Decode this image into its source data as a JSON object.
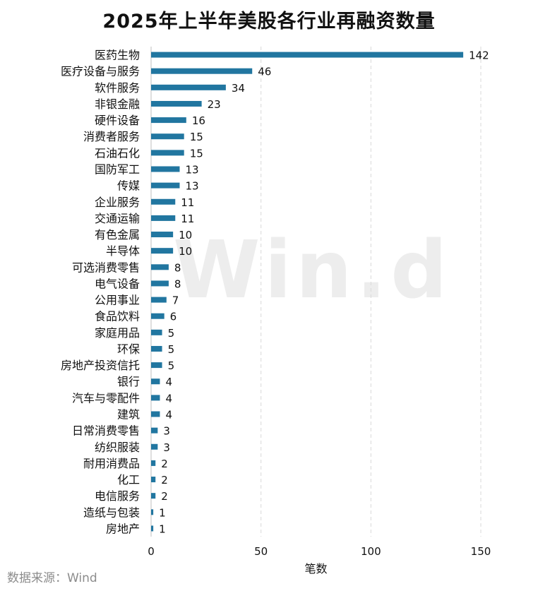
{
  "watermark": "Win.d",
  "source": "数据来源：Wind",
  "chart_data": {
    "type": "bar",
    "orientation": "horizontal",
    "title": "2025年上半年美股各行业再融资数量",
    "xlabel": "笔数",
    "ylabel": "",
    "xlim": [
      0,
      150
    ],
    "xticks": [
      0,
      50,
      100,
      150
    ],
    "grid": "vertical-dashed",
    "bar_color": "#2176a0",
    "categories": [
      "医药生物",
      "医疗设备与服务",
      "软件服务",
      "非银金融",
      "硬件设备",
      "消费者服务",
      "石油石化",
      "国防军工",
      "传媒",
      "企业服务",
      "交通运输",
      "有色金属",
      "半导体",
      "可选消费零售",
      "电气设备",
      "公用事业",
      "食品饮料",
      "家庭用品",
      "环保",
      "房地产投资信托",
      "银行",
      "汽车与零配件",
      "建筑",
      "日常消费零售",
      "纺织服装",
      "耐用消费品",
      "化工",
      "电信服务",
      "造纸与包装",
      "房地产"
    ],
    "values": [
      142,
      46,
      34,
      23,
      16,
      15,
      15,
      13,
      13,
      11,
      11,
      10,
      10,
      8,
      8,
      7,
      6,
      5,
      5,
      5,
      4,
      4,
      4,
      3,
      3,
      2,
      2,
      2,
      1,
      1
    ]
  }
}
